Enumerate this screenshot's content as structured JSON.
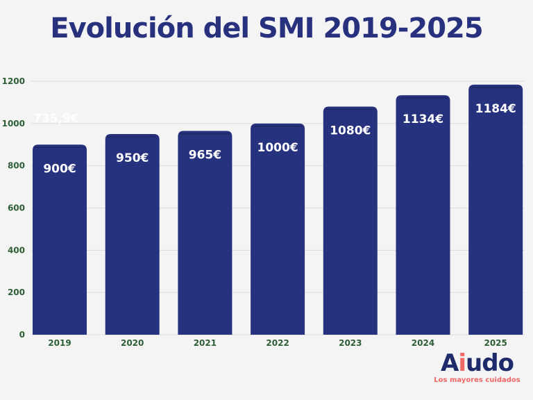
{
  "chart_data": {
    "type": "bar",
    "title": "Evolución del SMI 2019-2025",
    "categories": [
      "2019",
      "2020",
      "2021",
      "2022",
      "2023",
      "2024",
      "2025"
    ],
    "values": [
      900,
      950,
      965,
      1000,
      1080,
      1134,
      1184
    ],
    "data_labels": [
      "900€",
      "950€",
      "965€",
      "1000€",
      "1080€",
      "1134€",
      "1184€"
    ],
    "yticks": [
      0,
      200,
      400,
      600,
      800,
      1000,
      1200
    ],
    "ylim": [
      0,
      1200
    ],
    "grid": true,
    "annotation": "735,9€",
    "colors": {
      "bar": "#27327f",
      "bar_top": "#1e2766",
      "tick_text": "#2e5e35",
      "title": "#27317e",
      "grid": "#dcdcdc"
    }
  },
  "logo": {
    "name_a": "A",
    "name_i": "i",
    "name_rest": "udo",
    "tagline": "Los mayores cuidados",
    "colors": {
      "main": "#1f2a6b",
      "accent": "#f26666"
    }
  }
}
